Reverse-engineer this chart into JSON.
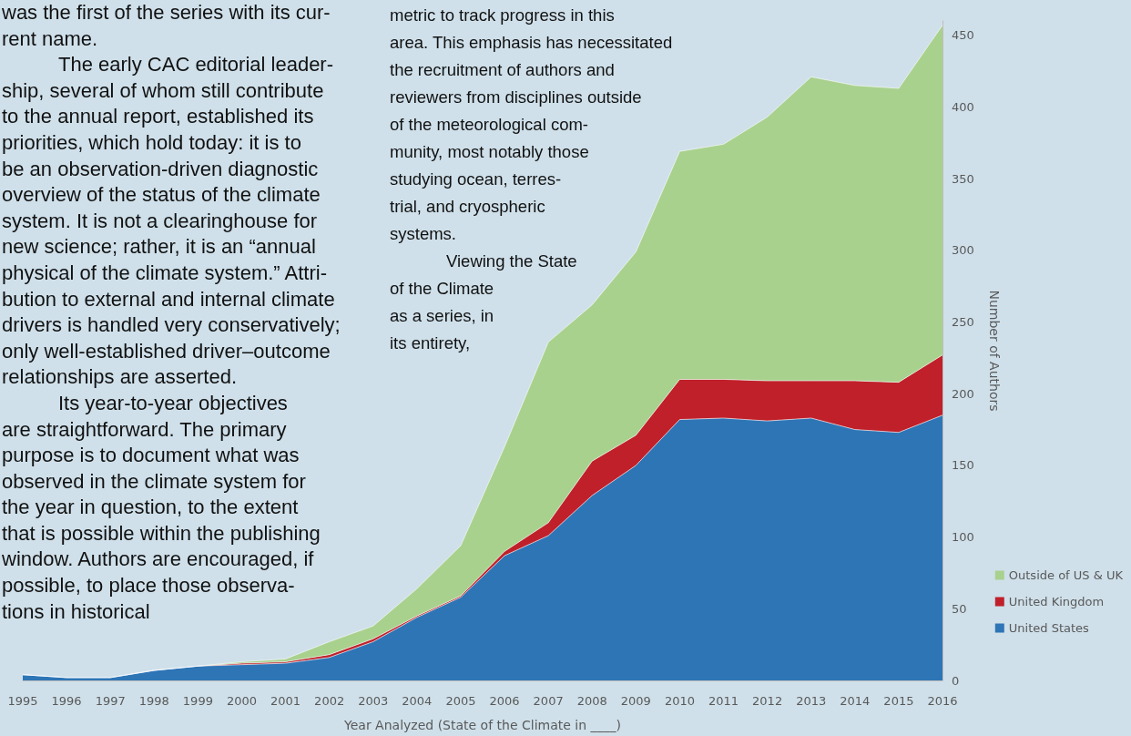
{
  "chart_data": {
    "type": "area",
    "stacked": true,
    "categories": [
      "1995",
      "1996",
      "1997",
      "1998",
      "1999",
      "2000",
      "2001",
      "2002",
      "2003",
      "2004",
      "2005",
      "2006",
      "2007",
      "2008",
      "2009",
      "2010",
      "2011",
      "2012",
      "2013",
      "2014",
      "2015",
      "2016"
    ],
    "series": [
      {
        "name": "United States",
        "color": "#2e75b6",
        "values": [
          4,
          2,
          2,
          7,
          10,
          11,
          12,
          16,
          27,
          44,
          58,
          87,
          101,
          129,
          150,
          182,
          183,
          181,
          183,
          175,
          173,
          185
        ]
      },
      {
        "name": "United Kingdom",
        "color": "#c0202a",
        "values": [
          0,
          0,
          0,
          0,
          0,
          1,
          1,
          2,
          2,
          1,
          1,
          3,
          9,
          24,
          21,
          28,
          27,
          28,
          26,
          34,
          35,
          42
        ]
      },
      {
        "name": "Outside of US & UK",
        "color": "#a9d18e",
        "values": [
          0,
          0,
          0,
          0,
          0,
          1,
          2,
          9,
          9,
          19,
          35,
          73,
          126,
          109,
          128,
          159,
          164,
          184,
          212,
          206,
          205,
          230
        ]
      }
    ],
    "xlabel": "Year Analyzed (State of the Climate in ____)",
    "ylabel": "Number of Authors",
    "ylim": [
      0,
      460
    ],
    "yticks": [
      0,
      50,
      100,
      150,
      200,
      250,
      300,
      350,
      400,
      450
    ],
    "grid": false,
    "legend": "right",
    "annotations": [
      "was the first of the series with its cur-\nrent name.",
      "The early CAC editorial leader-\nship, several of whom still contribute\nto the annual report, established its\npriorities, which hold today: it is to\nbe an observation-driven diagnostic\noverview of the status of the climate\nsystem. It is not a clearinghouse for\nnew science; rather, it is an “annual\nphysical of the climate system.” Attri-\nbution to external and internal climate\ndrivers is handled very conservatively;\nonly well-established driver–outcome\nrelationships are asserted.",
      "Its year-to-year objectives\nare straightforward. The primary\npurpose is to document what was\nobserved in the climate system for\nthe year in question, to the extent\nthat is possible within the publishing\nwindow. Authors are encouraged, if\npossible, to place those observa-\ntions in historical",
      "metric to track progress in this\narea. This emphasis has necessitated\nthe recruitment of authors and\nreviewers from disciplines outside\nof the meteorological com-\nmunity, most notably those\nstudying ocean, terres-\ntrial, and cryospheric\nsystems.",
      "Viewing the State\nof the Climate\nas a series, in\nits entirety,"
    ]
  }
}
